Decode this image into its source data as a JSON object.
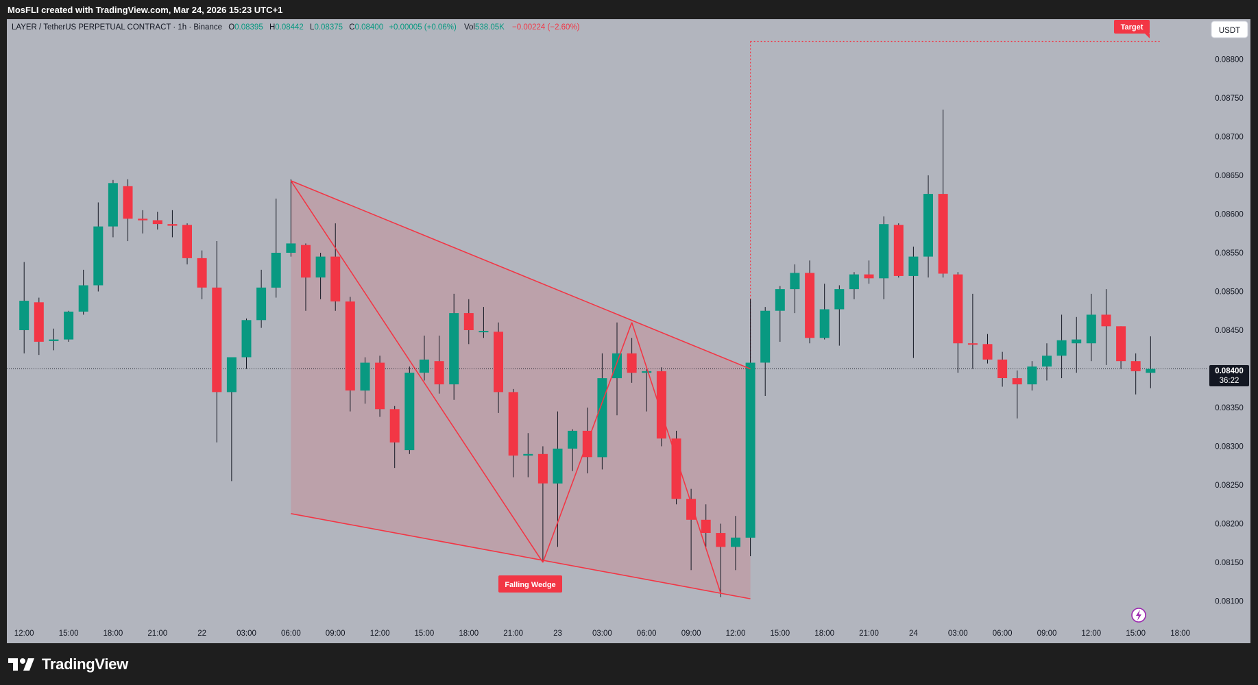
{
  "header": {
    "credit": "MosFLI created with TradingView.com, Mar 24, 2026 15:23 UTC+1"
  },
  "legend": {
    "symbol": "LAYER / TetherUS PERPETUAL CONTRACT · 1h · Binance",
    "o_label": "O",
    "o_value": "0.08395",
    "h_label": "H",
    "h_value": "0.08442",
    "l_label": "L",
    "l_value": "0.08375",
    "c_label": "C",
    "c_value": "0.08400",
    "change": "+0.00005 (+0.06%)",
    "vol_label": "Vol",
    "vol_value": "538.05K",
    "vol_change": "−0.00224 (−2.60%)"
  },
  "currency_button": "USDT",
  "last_price": {
    "price": "0.08400",
    "countdown": "36:22"
  },
  "annotations": {
    "target": "Target",
    "pattern": "Falling Wedge"
  },
  "brand": {
    "name": "TradingView"
  },
  "colors": {
    "up": "#089981",
    "down": "#f23645",
    "pattern_fill": "#f23645",
    "background": "#b2b5be"
  },
  "chart_data": {
    "type": "candlestick",
    "symbol": "LAYER/USDT",
    "interval": "1h",
    "y_range": [
      0.0808,
      0.0889
    ],
    "y_ticks": [
      "0.08800",
      "0.08750",
      "0.08700",
      "0.08650",
      "0.08600",
      "0.08550",
      "0.08500",
      "0.08450",
      "0.08400",
      "0.08350",
      "0.08300",
      "0.08250",
      "0.08200",
      "0.08150",
      "0.08100"
    ],
    "x_ticks": [
      {
        "i": 0,
        "label": "12:00"
      },
      {
        "i": 3,
        "label": "15:00"
      },
      {
        "i": 6,
        "label": "18:00"
      },
      {
        "i": 9,
        "label": "21:00"
      },
      {
        "i": 12,
        "label": "22"
      },
      {
        "i": 15,
        "label": "03:00"
      },
      {
        "i": 18,
        "label": "06:00"
      },
      {
        "i": 21,
        "label": "09:00"
      },
      {
        "i": 24,
        "label": "12:00"
      },
      {
        "i": 27,
        "label": "15:00"
      },
      {
        "i": 30,
        "label": "18:00"
      },
      {
        "i": 33,
        "label": "21:00"
      },
      {
        "i": 36,
        "label": "23"
      },
      {
        "i": 39,
        "label": "03:00"
      },
      {
        "i": 42,
        "label": "06:00"
      },
      {
        "i": 45,
        "label": "09:00"
      },
      {
        "i": 48,
        "label": "12:00"
      },
      {
        "i": 51,
        "label": "15:00"
      },
      {
        "i": 54,
        "label": "18:00"
      },
      {
        "i": 57,
        "label": "21:00"
      },
      {
        "i": 60,
        "label": "24"
      },
      {
        "i": 63,
        "label": "03:00"
      },
      {
        "i": 66,
        "label": "06:00"
      },
      {
        "i": 69,
        "label": "09:00"
      },
      {
        "i": 72,
        "label": "12:00"
      },
      {
        "i": 75,
        "label": "15:00"
      },
      {
        "i": 78,
        "label": "18:00"
      }
    ],
    "candles": [
      [
        0.0845,
        0.08538,
        0.0842,
        0.08488
      ],
      [
        0.08486,
        0.08492,
        0.08418,
        0.08435
      ],
      [
        0.08436,
        0.08452,
        0.08424,
        0.08438
      ],
      [
        0.08438,
        0.08475,
        0.08435,
        0.08474
      ],
      [
        0.08474,
        0.08528,
        0.0847,
        0.08508
      ],
      [
        0.08508,
        0.08615,
        0.085,
        0.08584
      ],
      [
        0.08584,
        0.08644,
        0.0857,
        0.0864
      ],
      [
        0.08636,
        0.08645,
        0.08565,
        0.08594
      ],
      [
        0.08594,
        0.08605,
        0.08575,
        0.08592
      ],
      [
        0.08592,
        0.08603,
        0.0858,
        0.08587
      ],
      [
        0.08587,
        0.08605,
        0.0857,
        0.08585
      ],
      [
        0.08586,
        0.08588,
        0.08535,
        0.08543
      ],
      [
        0.08543,
        0.08553,
        0.0849,
        0.08505
      ],
      [
        0.08505,
        0.08565,
        0.08305,
        0.0837
      ],
      [
        0.0837,
        0.08415,
        0.08255,
        0.08415
      ],
      [
        0.08415,
        0.08465,
        0.084,
        0.08463
      ],
      [
        0.08463,
        0.08528,
        0.08453,
        0.08505
      ],
      [
        0.08505,
        0.0862,
        0.08492,
        0.0855
      ],
      [
        0.0855,
        0.08645,
        0.08545,
        0.08562
      ],
      [
        0.0856,
        0.08562,
        0.08475,
        0.08518
      ],
      [
        0.08518,
        0.0855,
        0.0849,
        0.08545
      ],
      [
        0.08545,
        0.08588,
        0.08475,
        0.08487
      ],
      [
        0.08487,
        0.08493,
        0.08345,
        0.08372
      ],
      [
        0.08372,
        0.08415,
        0.08355,
        0.08408
      ],
      [
        0.08408,
        0.08417,
        0.08338,
        0.08348
      ],
      [
        0.08348,
        0.08352,
        0.08272,
        0.08305
      ],
      [
        0.08295,
        0.08403,
        0.0829,
        0.08395
      ],
      [
        0.08395,
        0.08443,
        0.08385,
        0.08412
      ],
      [
        0.0841,
        0.08443,
        0.08368,
        0.0838
      ],
      [
        0.0838,
        0.08497,
        0.0836,
        0.08472
      ],
      [
        0.08472,
        0.0849,
        0.08432,
        0.0845
      ],
      [
        0.08448,
        0.0848,
        0.0844,
        0.08449
      ],
      [
        0.08448,
        0.0846,
        0.08343,
        0.0837
      ],
      [
        0.0837,
        0.08374,
        0.0826,
        0.08288
      ],
      [
        0.08288,
        0.08317,
        0.0826,
        0.0829
      ],
      [
        0.0829,
        0.083,
        0.0815,
        0.08252
      ],
      [
        0.08252,
        0.08345,
        0.0817,
        0.08297
      ],
      [
        0.08297,
        0.08322,
        0.08268,
        0.0832
      ],
      [
        0.0832,
        0.0835,
        0.08265,
        0.08286
      ],
      [
        0.08286,
        0.0842,
        0.0827,
        0.08388
      ],
      [
        0.08388,
        0.0846,
        0.0834,
        0.0842
      ],
      [
        0.0842,
        0.0844,
        0.08382,
        0.08395
      ],
      [
        0.08395,
        0.08402,
        0.08345,
        0.08397
      ],
      [
        0.08397,
        0.08402,
        0.083,
        0.0831
      ],
      [
        0.0831,
        0.0832,
        0.08225,
        0.08232
      ],
      [
        0.08232,
        0.08245,
        0.0814,
        0.08205
      ],
      [
        0.08205,
        0.08225,
        0.0817,
        0.08188
      ],
      [
        0.08188,
        0.082,
        0.08105,
        0.0817
      ],
      [
        0.0817,
        0.0821,
        0.0814,
        0.08182
      ],
      [
        0.08182,
        0.0849,
        0.08158,
        0.08408
      ],
      [
        0.08408,
        0.0848,
        0.08365,
        0.08475
      ],
      [
        0.08475,
        0.08507,
        0.08435,
        0.08503
      ],
      [
        0.08503,
        0.08535,
        0.08472,
        0.08524
      ],
      [
        0.08524,
        0.0854,
        0.08433,
        0.0844
      ],
      [
        0.0844,
        0.0851,
        0.08438,
        0.08477
      ],
      [
        0.08477,
        0.08508,
        0.0843,
        0.08503
      ],
      [
        0.08503,
        0.08525,
        0.0849,
        0.08522
      ],
      [
        0.08522,
        0.0854,
        0.0851,
        0.08517
      ],
      [
        0.08517,
        0.08597,
        0.0849,
        0.08587
      ],
      [
        0.08586,
        0.08588,
        0.08518,
        0.0852
      ],
      [
        0.0852,
        0.08558,
        0.08414,
        0.08545
      ],
      [
        0.08545,
        0.0865,
        0.08518,
        0.08626
      ],
      [
        0.08626,
        0.08735,
        0.08518,
        0.08523
      ],
      [
        0.08522,
        0.08525,
        0.08395,
        0.08433
      ],
      [
        0.08433,
        0.08497,
        0.084,
        0.08432
      ],
      [
        0.08432,
        0.08445,
        0.08407,
        0.08412
      ],
      [
        0.08412,
        0.08422,
        0.08377,
        0.08388
      ],
      [
        0.08388,
        0.08398,
        0.08336,
        0.0838
      ],
      [
        0.0838,
        0.0841,
        0.08372,
        0.08403
      ],
      [
        0.08403,
        0.08433,
        0.08385,
        0.08417
      ],
      [
        0.08417,
        0.0847,
        0.08388,
        0.08437
      ],
      [
        0.08433,
        0.08467,
        0.08395,
        0.08438
      ],
      [
        0.08433,
        0.08497,
        0.0841,
        0.0847
      ],
      [
        0.0847,
        0.08503,
        0.08405,
        0.08455
      ],
      [
        0.08455,
        0.08455,
        0.084,
        0.0841
      ],
      [
        0.0841,
        0.0842,
        0.08367,
        0.08397
      ],
      [
        0.08395,
        0.08442,
        0.08375,
        0.084
      ]
    ],
    "wedge": {
      "upper": [
        [
          18,
          0.08643
        ],
        [
          49,
          0.084
        ]
      ],
      "lower": [
        [
          18,
          0.08213
        ],
        [
          49,
          0.08103
        ]
      ],
      "zigzag": [
        [
          18,
          0.08643
        ],
        [
          35,
          0.0815
        ],
        [
          41,
          0.0846
        ],
        [
          47,
          0.0811
        ]
      ]
    },
    "target_line": {
      "from_index": 49,
      "to_index": 76.7,
      "level": 0.08823
    }
  }
}
